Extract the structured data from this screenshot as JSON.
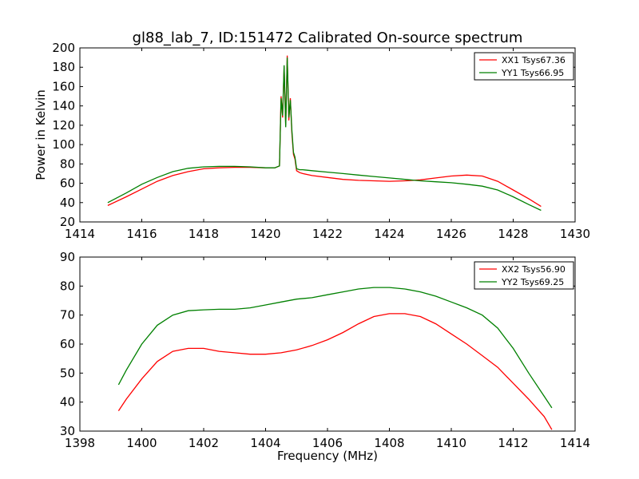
{
  "figure": {
    "title": "gl88_lab_7, ID:151472 Calibrated On-source spectrum",
    "ylabel": "Power in Kelvin",
    "xlabel": "Frequency (MHz)"
  },
  "chart_data": [
    {
      "type": "line",
      "title": "gl88_lab_7, ID:151472 Calibrated On-source spectrum",
      "xlabel": "",
      "ylabel": "Power in Kelvin",
      "xlim": [
        1414,
        1430
      ],
      "ylim": [
        20,
        200
      ],
      "xticks": [
        "1414",
        "1416",
        "1418",
        "1420",
        "1422",
        "1424",
        "1426",
        "1428",
        "1430"
      ],
      "yticks": [
        "20",
        "40",
        "60",
        "80",
        "100",
        "120",
        "140",
        "160",
        "180",
        "200"
      ],
      "legend_position": "top-right",
      "grid": false,
      "series": [
        {
          "name": "XX1 Tsys67.36",
          "color": "#ff0000",
          "x": [
            1414.9,
            1415.5,
            1416,
            1416.5,
            1417,
            1417.5,
            1418,
            1418.5,
            1419,
            1419.5,
            1420,
            1420.3,
            1420.45,
            1420.5,
            1420.55,
            1420.6,
            1420.65,
            1420.7,
            1420.75,
            1420.8,
            1420.85,
            1420.9,
            1420.95,
            1421,
            1421.1,
            1421.2,
            1421.5,
            1422,
            1422.5,
            1423,
            1423.5,
            1424,
            1424.5,
            1425,
            1425.5,
            1426,
            1426.5,
            1427,
            1427.5,
            1428,
            1428.5,
            1428.9
          ],
          "y": [
            37,
            46,
            54,
            62,
            68,
            72,
            75,
            76,
            76.5,
            76.5,
            76,
            76,
            78,
            150,
            128,
            180,
            120,
            192,
            125,
            148,
            112,
            90,
            85,
            73,
            71,
            70,
            68,
            66,
            64,
            63,
            62.5,
            62,
            62.5,
            63.5,
            65.5,
            67.5,
            68.5,
            67.5,
            62,
            53,
            44,
            36
          ]
        },
        {
          "name": "YY1 Tsys66.95",
          "color": "#008000",
          "x": [
            1414.9,
            1415.5,
            1416,
            1416.5,
            1417,
            1417.5,
            1418,
            1418.5,
            1419,
            1419.5,
            1420,
            1420.3,
            1420.45,
            1420.5,
            1420.55,
            1420.6,
            1420.65,
            1420.7,
            1420.75,
            1420.8,
            1420.85,
            1420.9,
            1420.95,
            1421,
            1421.1,
            1421.2,
            1421.5,
            1422,
            1422.5,
            1423,
            1423.5,
            1424,
            1424.5,
            1425,
            1425.5,
            1426,
            1426.5,
            1427,
            1427.5,
            1428,
            1428.5,
            1428.9
          ],
          "y": [
            40,
            50,
            59,
            66,
            72,
            75.5,
            77,
            77.5,
            77.5,
            77,
            76,
            76,
            78,
            148,
            130,
            182,
            118,
            190,
            128,
            146,
            115,
            92,
            87,
            75,
            74,
            74,
            73,
            71.5,
            70,
            68.5,
            67,
            65.5,
            64,
            62.5,
            61.5,
            60.5,
            59,
            57,
            53,
            46,
            38,
            32
          ]
        }
      ]
    },
    {
      "type": "line",
      "title": "",
      "xlabel": "Frequency (MHz)",
      "ylabel": "",
      "xlim": [
        1398,
        1414
      ],
      "ylim": [
        30,
        90
      ],
      "xticks": [
        "1398",
        "1400",
        "1402",
        "1404",
        "1406",
        "1408",
        "1410",
        "1412",
        "1414"
      ],
      "yticks": [
        "30",
        "40",
        "50",
        "60",
        "70",
        "80",
        "90"
      ],
      "legend_position": "top-right",
      "grid": false,
      "series": [
        {
          "name": "XX2 Tsys56.90",
          "color": "#ff0000",
          "x": [
            1399.25,
            1399.5,
            1400,
            1400.5,
            1401,
            1401.5,
            1402,
            1402.5,
            1403,
            1403.5,
            1404,
            1404.5,
            1405,
            1405.5,
            1406,
            1406.5,
            1407,
            1407.5,
            1408,
            1408.5,
            1409,
            1409.5,
            1410,
            1410.5,
            1411,
            1411.5,
            1412,
            1412.5,
            1413,
            1413.25
          ],
          "y": [
            37,
            41,
            48,
            54,
            57.5,
            58.5,
            58.5,
            57.5,
            57,
            56.5,
            56.5,
            57,
            58,
            59.5,
            61.5,
            64,
            67,
            69.5,
            70.5,
            70.5,
            69.5,
            67,
            63.5,
            60,
            56,
            52,
            46.5,
            41,
            35,
            30.5
          ]
        },
        {
          "name": "YY2 Tsys69.25",
          "color": "#008000",
          "x": [
            1399.25,
            1399.5,
            1400,
            1400.5,
            1401,
            1401.5,
            1402,
            1402.5,
            1403,
            1403.5,
            1404,
            1404.5,
            1405,
            1405.5,
            1406,
            1406.5,
            1407,
            1407.5,
            1408,
            1408.5,
            1409,
            1409.5,
            1410,
            1410.5,
            1411,
            1411.5,
            1412,
            1412.5,
            1413,
            1413.25
          ],
          "y": [
            46,
            51,
            60,
            66.5,
            70,
            71.5,
            71.8,
            72,
            72,
            72.5,
            73.5,
            74.5,
            75.5,
            76,
            77,
            78,
            79,
            79.5,
            79.5,
            79,
            78,
            76.5,
            74.5,
            72.5,
            70,
            65.5,
            58.5,
            50,
            42,
            38
          ]
        }
      ]
    }
  ]
}
